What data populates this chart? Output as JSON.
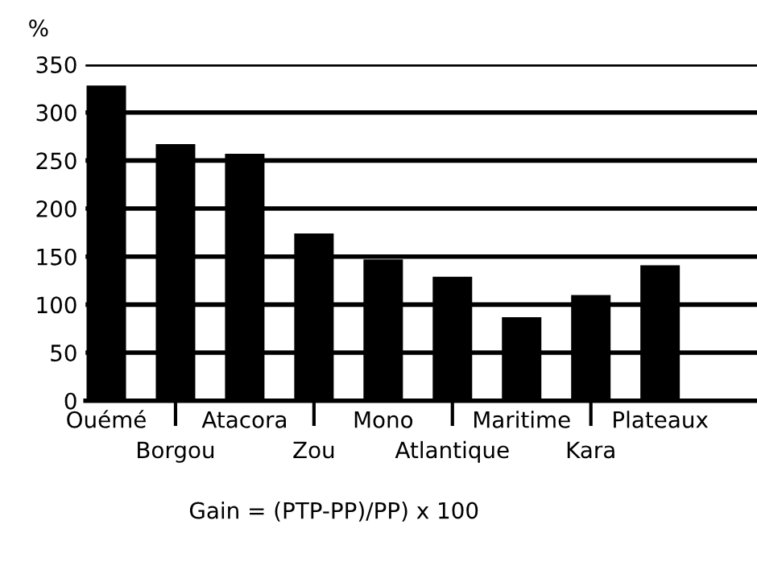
{
  "chart_data": {
    "type": "bar",
    "ylabel": "%",
    "xlabel": "Gain = (PTP-PP)/PP) x 100",
    "categories": [
      "Ouémé",
      "Borgou",
      "Atacora",
      "Zou",
      "Mono",
      "Atlantique",
      "Maritime",
      "Kara",
      "Plateaux"
    ],
    "values": [
      328,
      267,
      257,
      174,
      147,
      129,
      87,
      110,
      141
    ],
    "color": "#000000",
    "ylim": [
      0,
      350
    ],
    "yticks": [
      0,
      50,
      100,
      150,
      200,
      250,
      300,
      350
    ],
    "grid": "y"
  }
}
